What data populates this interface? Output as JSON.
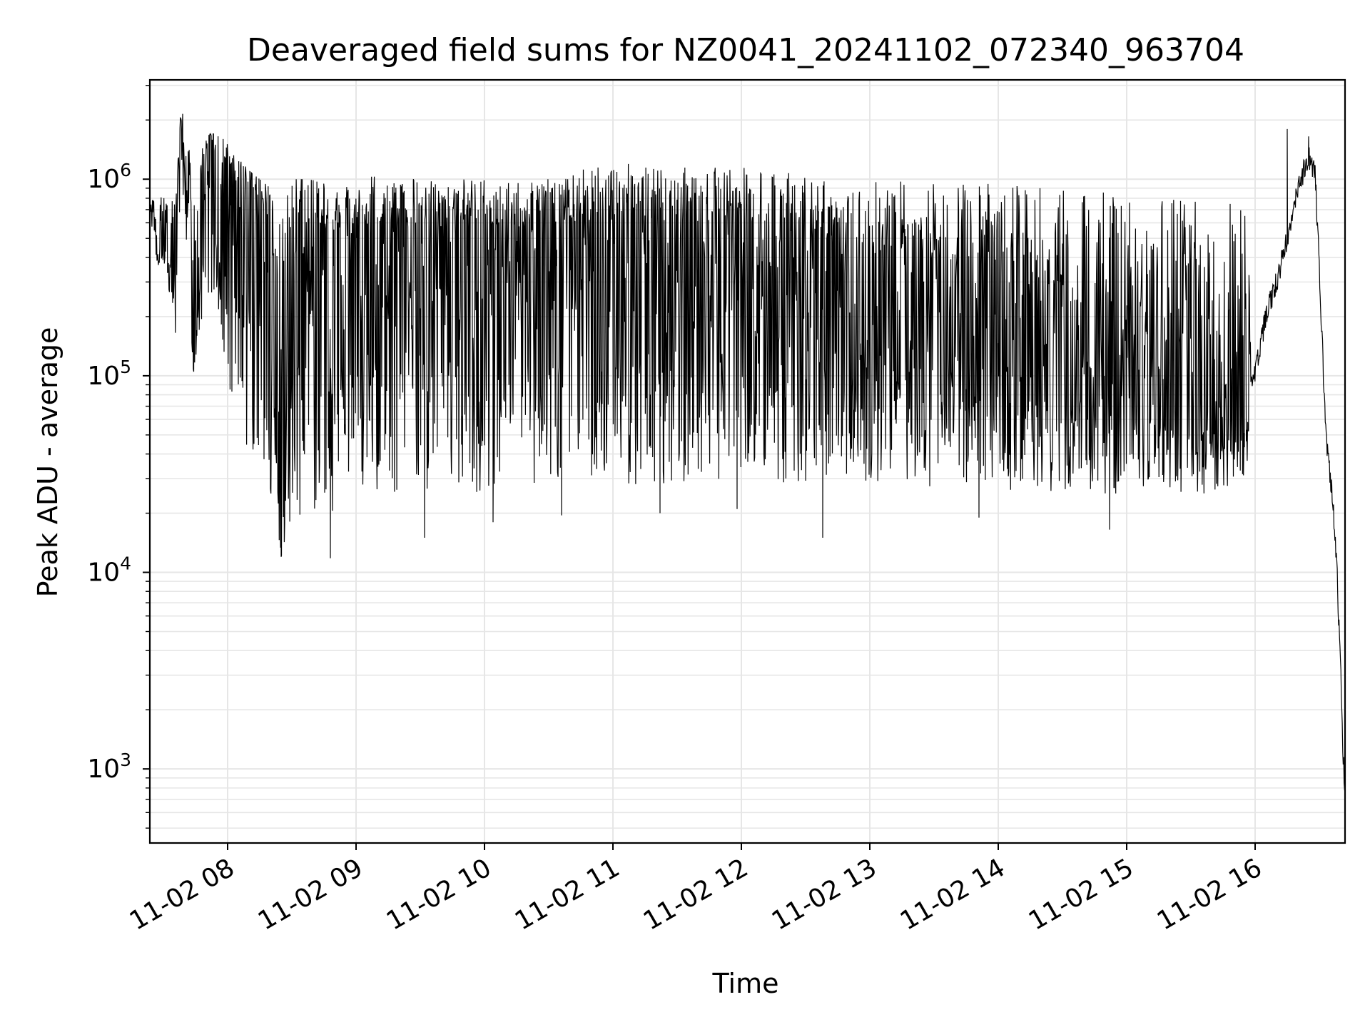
{
  "chart_data": {
    "type": "line",
    "title": "Deaveraged field sums for NZ0041_20241102_072340_963704",
    "xlabel": "Time",
    "ylabel": "Peak ADU - average",
    "yscale": "log",
    "ylim": [
      420,
      3200000
    ],
    "xlim": [
      "2024-11-02 07:23:40",
      "2024-11-02 16:42:00"
    ],
    "grid": true,
    "line_color": "#000000",
    "grid_color": "#e6e6e6",
    "x_ticks": [
      {
        "value": "2024-11-02 08:00",
        "label": "11-02 08"
      },
      {
        "value": "2024-11-02 09:00",
        "label": "11-02 09"
      },
      {
        "value": "2024-11-02 10:00",
        "label": "11-02 10"
      },
      {
        "value": "2024-11-02 11:00",
        "label": "11-02 11"
      },
      {
        "value": "2024-11-02 12:00",
        "label": "11-02 12"
      },
      {
        "value": "2024-11-02 13:00",
        "label": "11-02 13"
      },
      {
        "value": "2024-11-02 14:00",
        "label": "11-02 14"
      },
      {
        "value": "2024-11-02 15:00",
        "label": "11-02 15"
      },
      {
        "value": "2024-11-02 16:00",
        "label": "11-02 16"
      }
    ],
    "y_ticks": [
      {
        "value": 1000,
        "base": "10",
        "exp": "3"
      },
      {
        "value": 10000,
        "base": "10",
        "exp": "4"
      },
      {
        "value": 100000,
        "base": "10",
        "exp": "5"
      },
      {
        "value": 1000000,
        "base": "10",
        "exp": "6"
      }
    ],
    "series": [
      {
        "x": [
          "2024-11-02 07:24",
          "2024-11-02 07:28",
          "2024-11-02 07:32",
          "2024-11-02 07:36",
          "2024-11-02 07:38",
          "2024-11-02 07:40",
          "2024-11-02 07:42",
          "2024-11-02 07:44",
          "2024-11-02 07:48",
          "2024-11-02 07:52",
          "2024-11-02 07:56",
          "2024-11-02 08:00",
          "2024-11-02 08:05",
          "2024-11-02 08:10",
          "2024-11-02 08:15",
          "2024-11-02 08:20",
          "2024-11-02 08:25",
          "2024-11-02 08:30",
          "2024-11-02 08:40",
          "2024-11-02 08:50",
          "2024-11-02 09:00",
          "2024-11-02 09:15",
          "2024-11-02 09:30",
          "2024-11-02 09:45",
          "2024-11-02 10:00",
          "2024-11-02 10:20",
          "2024-11-02 10:40",
          "2024-11-02 11:00",
          "2024-11-02 11:20",
          "2024-11-02 11:40",
          "2024-11-02 12:00",
          "2024-11-02 12:20",
          "2024-11-02 12:40",
          "2024-11-02 13:00",
          "2024-11-02 13:20",
          "2024-11-02 13:40",
          "2024-11-02 14:00",
          "2024-11-02 14:20",
          "2024-11-02 14:40",
          "2024-11-02 15:00",
          "2024-11-02 15:20",
          "2024-11-02 15:40",
          "2024-11-02 15:55",
          "2024-11-02 16:00",
          "2024-11-02 16:05",
          "2024-11-02 16:10",
          "2024-11-02 16:15",
          "2024-11-02 16:20",
          "2024-11-02 16:25",
          "2024-11-02 16:28",
          "2024-11-02 16:30",
          "2024-11-02 16:33",
          "2024-11-02 16:36",
          "2024-11-02 16:38",
          "2024-11-02 16:40",
          "2024-11-02 16:41",
          "2024-11-02 16:42"
        ],
        "y": [
          700000,
          450000,
          600000,
          500000,
          2100000,
          1200000,
          900000,
          100000,
          1000000,
          1500000,
          1200000,
          1100000,
          700000,
          900000,
          600000,
          500000,
          12000,
          450000,
          400000,
          350000,
          400000,
          380000,
          420000,
          350000,
          400000,
          380000,
          420000,
          450000,
          400000,
          380000,
          420000,
          350000,
          300000,
          280000,
          250000,
          200000,
          180000,
          150000,
          130000,
          110000,
          100000,
          90000,
          80000,
          100000,
          200000,
          300000,
          500000,
          900000,
          1300000,
          1100000,
          350000,
          50000,
          25000,
          12000,
          3000,
          1200,
          800
        ],
        "lower": [
          400000,
          350000,
          300000,
          150000,
          1000000,
          600000,
          300000,
          100000,
          200000,
          150000,
          120000,
          70000,
          60000,
          40000,
          30000,
          25000,
          12000,
          20000,
          15000,
          20000,
          25000,
          25000,
          25000,
          25000,
          25000,
          28000,
          28000,
          28000,
          28000,
          28000,
          28000,
          28000,
          28000,
          28000,
          27000,
          27000,
          26000,
          26000,
          25000,
          25000,
          25000,
          25000,
          30000,
          60000,
          150000,
          250000,
          400000,
          700000,
          1000000,
          900000,
          350000,
          50000,
          25000,
          12000,
          3000,
          1200,
          800
        ],
        "upper": [
          900000,
          800000,
          900000,
          1000000,
          2100000,
          1600000,
          1500000,
          1200000,
          1600000,
          1700000,
          1700000,
          1500000,
          1300000,
          1100000,
          1000000,
          900000,
          900000,
          1000000,
          1000000,
          900000,
          1100000,
          1000000,
          1000000,
          1000000,
          1000000,
          1050000,
          1100000,
          1200000,
          1200000,
          1150000,
          1150000,
          1100000,
          1050000,
          1000000,
          1000000,
          950000,
          950000,
          900000,
          900000,
          850000,
          850000,
          800000,
          800000,
          400000,
          500000,
          600000,
          800000,
          1600000,
          1800000,
          1300000,
          400000,
          60000,
          30000,
          15000,
          4000,
          1500,
          900
        ],
        "spikes": [
          {
            "x": "2024-11-02 08:25",
            "y": 12000
          },
          {
            "x": "2024-11-02 08:48",
            "y": 11800
          },
          {
            "x": "2024-11-02 09:32",
            "y": 15000
          },
          {
            "x": "2024-11-02 10:04",
            "y": 18000
          },
          {
            "x": "2024-11-02 10:36",
            "y": 19500
          },
          {
            "x": "2024-11-02 11:22",
            "y": 20000
          },
          {
            "x": "2024-11-02 11:58",
            "y": 21000
          },
          {
            "x": "2024-11-02 12:38",
            "y": 15000
          },
          {
            "x": "2024-11-02 13:51",
            "y": 19000
          },
          {
            "x": "2024-11-02 14:52",
            "y": 16500
          },
          {
            "x": "2024-11-02 07:39",
            "y": 2150000
          },
          {
            "x": "2024-11-02 16:15",
            "y": 1800000
          },
          {
            "x": "2024-11-02 16:25",
            "y": 1650000
          }
        ]
      }
    ]
  }
}
